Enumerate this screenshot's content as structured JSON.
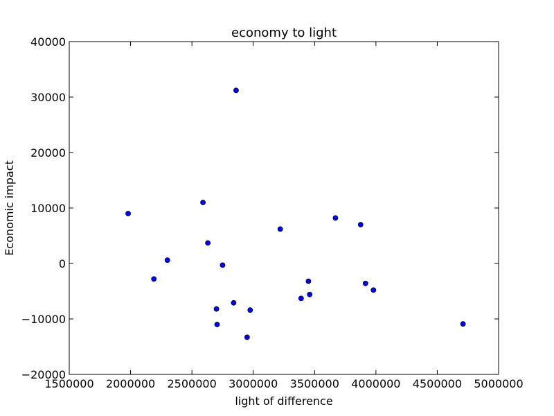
{
  "chart_data": {
    "type": "scatter",
    "title": "economy to light",
    "xlabel": "light of difference",
    "ylabel": "Economic impact",
    "xlim": [
      1500000,
      5000000
    ],
    "ylim": [
      -20000,
      40000
    ],
    "xticks": [
      1500000,
      2000000,
      2500000,
      3000000,
      3500000,
      4000000,
      4500000,
      5000000
    ],
    "yticks": [
      -20000,
      -10000,
      0,
      10000,
      20000,
      30000,
      40000
    ],
    "grid": false,
    "marker_color": "#0000ff",
    "marker_edge_color": "#000000",
    "series": [
      {
        "points": [
          {
            "x": 1980000,
            "y": 9000
          },
          {
            "x": 2190000,
            "y": -2800
          },
          {
            "x": 2300000,
            "y": 600
          },
          {
            "x": 2590000,
            "y": 11000
          },
          {
            "x": 2630000,
            "y": 3700
          },
          {
            "x": 2700000,
            "y": -8200
          },
          {
            "x": 2705000,
            "y": -11000
          },
          {
            "x": 2750000,
            "y": -300
          },
          {
            "x": 2840000,
            "y": -7100
          },
          {
            "x": 2860000,
            "y": 31200
          },
          {
            "x": 2950000,
            "y": -13300
          },
          {
            "x": 2975000,
            "y": -8400
          },
          {
            "x": 3220000,
            "y": 6200
          },
          {
            "x": 3390000,
            "y": -6300
          },
          {
            "x": 3450000,
            "y": -3200
          },
          {
            "x": 3460000,
            "y": -5600
          },
          {
            "x": 3670000,
            "y": 8200
          },
          {
            "x": 3875000,
            "y": 7000
          },
          {
            "x": 3915000,
            "y": -3600
          },
          {
            "x": 3980000,
            "y": -4800
          },
          {
            "x": 4710000,
            "y": -10900
          }
        ]
      }
    ]
  }
}
